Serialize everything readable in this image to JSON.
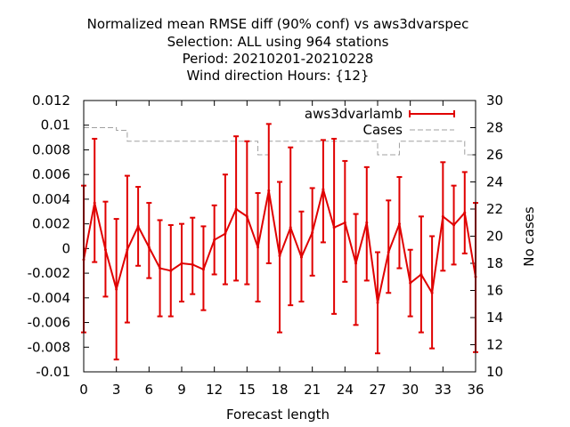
{
  "chart_data": {
    "type": "line",
    "title_lines": [
      "Normalized mean RMSE diff (90% conf) vs aws3dvarspec",
      "Selection: ALL using   964 stations",
      "Period: 20210201-20210228",
      "Wind direction   Hours: {12}"
    ],
    "xlabel": "Forecast length",
    "ylabel": "",
    "y2label": "No cases",
    "xlim": [
      0,
      36
    ],
    "ylim": [
      -0.01,
      0.012
    ],
    "y2lim": [
      10,
      30
    ],
    "x_ticks": [
      0,
      3,
      6,
      9,
      12,
      15,
      18,
      21,
      24,
      27,
      30,
      33,
      36
    ],
    "y_ticks": [
      -0.01,
      -0.008,
      -0.006,
      -0.004,
      -0.002,
      0,
      0.002,
      0.004,
      0.006,
      0.008,
      0.01,
      0.012
    ],
    "y_tick_labels": [
      "-0.01",
      "-0.008",
      "-0.006",
      "-0.004",
      "-0.002",
      "0",
      "0.002",
      "0.004",
      "0.006",
      "0.008",
      "0.01",
      "0.012"
    ],
    "y2_ticks": [
      10,
      12,
      14,
      16,
      18,
      20,
      22,
      24,
      26,
      28,
      30
    ],
    "legend_position": "top-right",
    "series": [
      {
        "name": "aws3dvarlamb",
        "color": "#e00000",
        "style": "errorbars",
        "x": [
          0,
          1,
          2,
          3,
          4,
          5,
          6,
          7,
          8,
          9,
          10,
          11,
          12,
          13,
          14,
          15,
          16,
          17,
          18,
          19,
          20,
          21,
          22,
          23,
          24,
          25,
          26,
          27,
          28,
          29,
          30,
          31,
          32,
          33,
          34,
          35,
          36
        ],
        "y": [
          -0.0009,
          0.0037,
          -0.0001,
          -0.0033,
          -0.0001,
          0.0018,
          0.0001,
          -0.0016,
          -0.0018,
          -0.0012,
          -0.0013,
          -0.0017,
          0.0007,
          0.0012,
          0.0032,
          0.0026,
          0.0001,
          0.0047,
          -0.0006,
          0.0017,
          -0.0007,
          0.0013,
          0.0048,
          0.0017,
          0.0021,
          -0.0012,
          0.0021,
          -0.0044,
          -0.0003,
          0.002,
          -0.0028,
          -0.0021,
          -0.0036,
          0.0026,
          0.0019,
          0.0029,
          -0.0023
        ],
        "low": [
          -0.0068,
          -0.0011,
          -0.0039,
          -0.009,
          -0.006,
          -0.0014,
          -0.0024,
          -0.0055,
          -0.0055,
          -0.0043,
          -0.0037,
          -0.005,
          -0.0021,
          -0.0029,
          -0.0026,
          -0.0029,
          -0.0043,
          -0.0012,
          -0.0068,
          -0.0046,
          -0.0043,
          -0.0022,
          0.0005,
          -0.0053,
          -0.0027,
          -0.0062,
          -0.0026,
          -0.0085,
          -0.0036,
          -0.0016,
          -0.0055,
          -0.0068,
          -0.0081,
          -0.0018,
          -0.0013,
          -0.0004,
          -0.0084
        ],
        "high": [
          0.0051,
          0.0089,
          0.0038,
          0.0024,
          0.0059,
          0.005,
          0.0037,
          0.0023,
          0.0019,
          0.002,
          0.0025,
          0.0018,
          0.0035,
          0.006,
          0.0091,
          0.0087,
          0.0045,
          0.0101,
          0.0054,
          0.0082,
          0.003,
          0.0049,
          0.0088,
          0.0089,
          0.0071,
          0.0028,
          0.0066,
          -0.0003,
          0.0039,
          0.0058,
          -0.0001,
          0.0026,
          0.001,
          0.007,
          0.0051,
          0.0062,
          0.0037
        ]
      },
      {
        "name": "Cases",
        "color": "#a0a0a0",
        "style": "dashed",
        "axis": "y2",
        "x": [
          0,
          1,
          2,
          3,
          4,
          5,
          6,
          7,
          8,
          9,
          10,
          11,
          12,
          13,
          14,
          15,
          16,
          17,
          18,
          19,
          20,
          21,
          22,
          23,
          24,
          25,
          26,
          27,
          28,
          29,
          30,
          31,
          32,
          33,
          34,
          35,
          36
        ],
        "values": [
          28,
          28,
          28,
          27.8,
          27,
          27,
          27,
          27,
          27,
          27,
          27,
          27,
          27,
          27,
          27,
          27,
          26,
          27,
          27,
          27,
          27,
          27,
          27,
          27,
          27,
          27,
          27,
          26,
          26,
          27,
          27,
          27,
          27,
          27,
          27,
          26,
          26
        ]
      }
    ]
  }
}
